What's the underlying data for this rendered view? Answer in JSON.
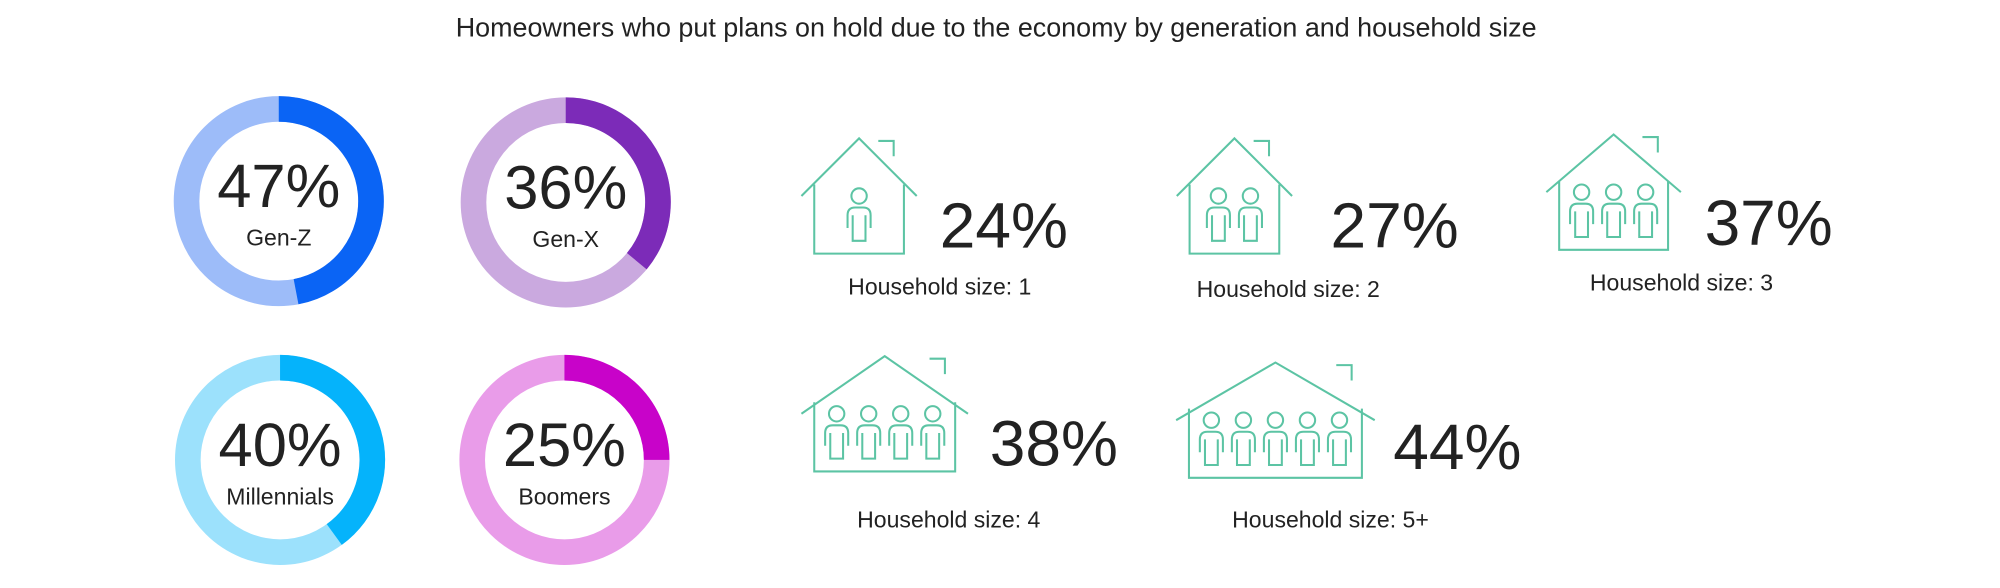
{
  "title": "Homeowners who put plans on hold due to the economy by generation and household size",
  "chart_data": [
    {
      "type": "donut",
      "categories": [
        "Gen-Z"
      ],
      "values": [
        47
      ],
      "value_labels": [
        "47%"
      ],
      "color": "#0a64f5",
      "track_color": "#9dbcf9"
    },
    {
      "type": "donut",
      "categories": [
        "Gen-X"
      ],
      "values": [
        36
      ],
      "value_labels": [
        "36%"
      ],
      "color": "#7c2bb8",
      "track_color": "#caa9df"
    },
    {
      "type": "donut",
      "categories": [
        "Millennials"
      ],
      "values": [
        40
      ],
      "value_labels": [
        "40%"
      ],
      "color": "#05b3fb",
      "track_color": "#9ce1fc"
    },
    {
      "type": "donut",
      "categories": [
        "Boomers"
      ],
      "values": [
        25
      ],
      "value_labels": [
        "25%"
      ],
      "color": "#c803c9",
      "track_color": "#e99ce9"
    },
    {
      "type": "icon-stat",
      "categories": [
        "Household size: 1",
        "Household size: 2",
        "Household size: 3",
        "Household size: 4",
        "Household size: 5+"
      ],
      "values": [
        24,
        27,
        37,
        38,
        44
      ],
      "value_labels": [
        "24%",
        "27%",
        "37%",
        "38%",
        "44%"
      ],
      "color": "#5cc4a4"
    }
  ]
}
